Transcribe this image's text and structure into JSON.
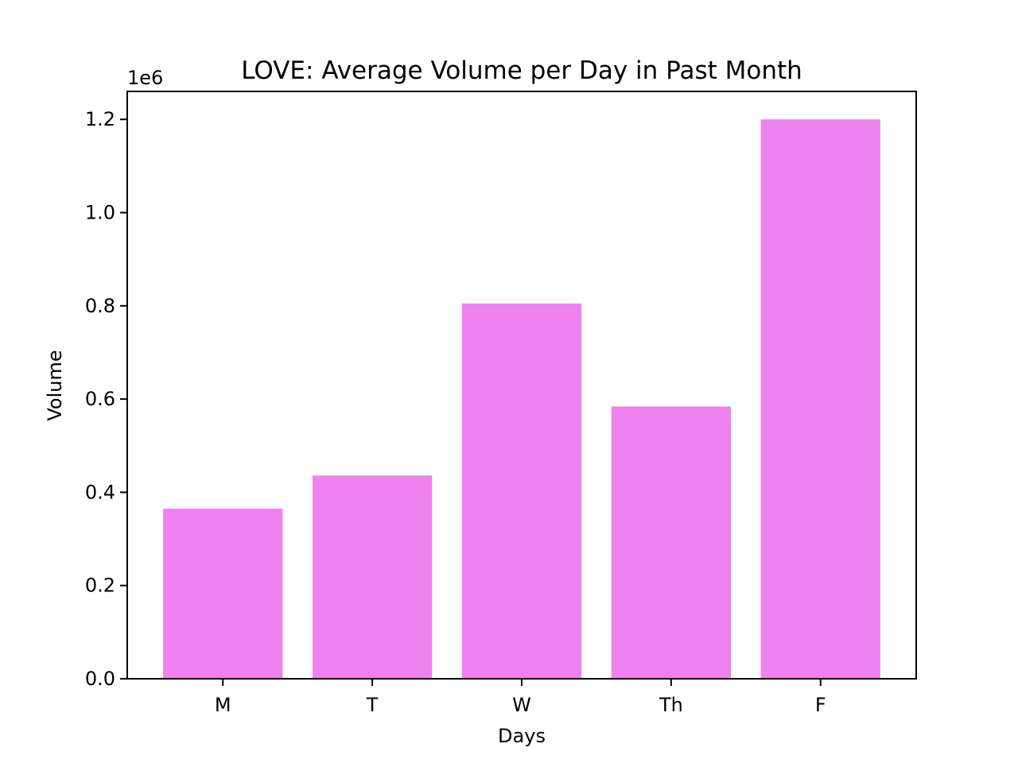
{
  "chart_data": {
    "type": "bar",
    "title": "LOVE: Average Volume per Day in Past Month",
    "xlabel": "Days",
    "ylabel": "Volume",
    "categories": [
      "M",
      "T",
      "W",
      "Th",
      "F"
    ],
    "values": [
      365000,
      436000,
      805000,
      584000,
      1200000
    ],
    "ylim": [
      0,
      1260000
    ],
    "yticks": [
      0,
      200000,
      400000,
      600000,
      800000,
      1000000,
      1200000
    ],
    "ytick_labels": [
      "0.0",
      "0.2",
      "0.4",
      "0.6",
      "0.8",
      "1.0",
      "1.2"
    ],
    "y_offset_label": "1e6",
    "bar_color": "#ee82ee",
    "grid": false,
    "legend": "none"
  }
}
